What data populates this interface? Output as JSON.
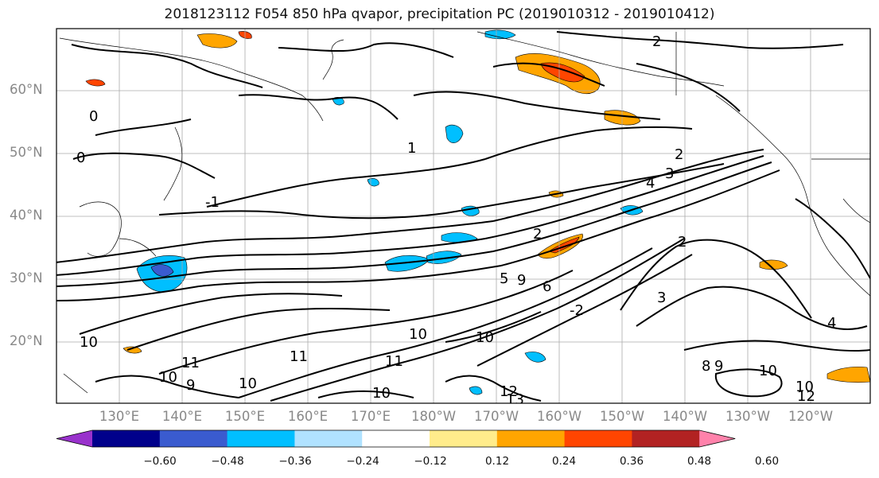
{
  "title": "2018123112 F054 850 hPa qvapor, precipitation PC (2019010312 - 2019010412)",
  "lat_labels": [
    "60°N",
    "50°N",
    "40°N",
    "30°N",
    "20°N"
  ],
  "lon_labels": [
    "130°E",
    "140°E",
    "150°E",
    "160°E",
    "170°E",
    "180°W",
    "170°W",
    "160°W",
    "150°W",
    "140°W",
    "130°W",
    "120°W"
  ],
  "contour_labels": [
    "2",
    "2",
    "3",
    "4",
    "2",
    "1",
    "0",
    "0",
    "-1",
    "2",
    "3",
    "11",
    "11",
    "10",
    "10",
    "9",
    "10",
    "11",
    "10",
    "12",
    "13",
    "10",
    "9",
    "8",
    "9",
    "10",
    "10",
    "12",
    "5",
    "6",
    "10",
    "4",
    "-2"
  ],
  "colorbar": {
    "colors": [
      "#9932cc",
      "#00008b",
      "#3a5bcf",
      "#00bfff",
      "#b0e2ff",
      "#ffffff",
      "#ffec8b",
      "#ffa500",
      "#ff4500",
      "#b22222",
      "#ff82ab"
    ],
    "ticks": [
      "−0.60",
      "−0.48",
      "−0.36",
      "−0.24",
      "−0.12",
      "0.12",
      "0.24",
      "0.36",
      "0.48",
      "0.60"
    ]
  }
}
